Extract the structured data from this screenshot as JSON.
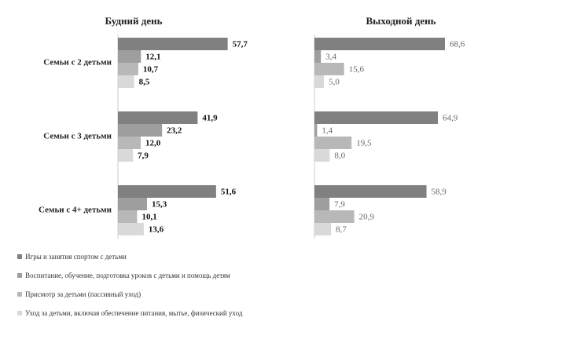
{
  "chart_data": [
    {
      "type": "bar",
      "orientation": "horizontal",
      "title": "Будний день",
      "categories": [
        "Семьи с 2 детьми",
        "Семьи с 3 детьми",
        "Семьи с 4+ детьми"
      ],
      "series": [
        {
          "name": "Игры и занятия спортом с детьми",
          "color": "#808080",
          "values": [
            57.7,
            41.9,
            51.6
          ],
          "value_labels": [
            "57,7",
            "41,9",
            "51,6"
          ]
        },
        {
          "name": "Воспитание, обучение, подготовка уроков с детьми и помощь детям",
          "color": "#9e9e9e",
          "values": [
            12.1,
            23.2,
            15.3
          ],
          "value_labels": [
            "12,1",
            "23,2",
            "15,3"
          ]
        },
        {
          "name": "Присмотр за детьми (пассивный уход)",
          "color": "#b8b8b8",
          "values": [
            10.7,
            12.0,
            10.1
          ],
          "value_labels": [
            "10,7",
            "12,0",
            "10,1"
          ]
        },
        {
          "name": "Уход за детьми, включая обеспечение питания, мытье, физический уход",
          "color": "#d9d9d9",
          "values": [
            8.5,
            7.9,
            13.6
          ],
          "value_labels": [
            "8,5",
            "7,9",
            "13,6"
          ]
        }
      ]
    },
    {
      "type": "bar",
      "orientation": "horizontal",
      "title": "Выходной день",
      "series": [
        {
          "color": "#808080",
          "values": [
            68.6,
            64.9,
            58.9
          ],
          "value_labels": [
            "68,6",
            "64,9",
            "58,9"
          ]
        },
        {
          "color": "#9e9e9e",
          "values": [
            3.4,
            1.4,
            7.9
          ],
          "value_labels": [
            "3,4",
            "1,4",
            "7,9"
          ]
        },
        {
          "color": "#b8b8b8",
          "values": [
            15.6,
            19.5,
            20.9
          ],
          "value_labels": [
            "15,6",
            "19,5",
            "20,9"
          ]
        },
        {
          "color": "#d9d9d9",
          "values": [
            5.0,
            8.0,
            8.7
          ],
          "value_labels": [
            "5,0",
            "8,0",
            "8,7"
          ]
        }
      ]
    }
  ]
}
